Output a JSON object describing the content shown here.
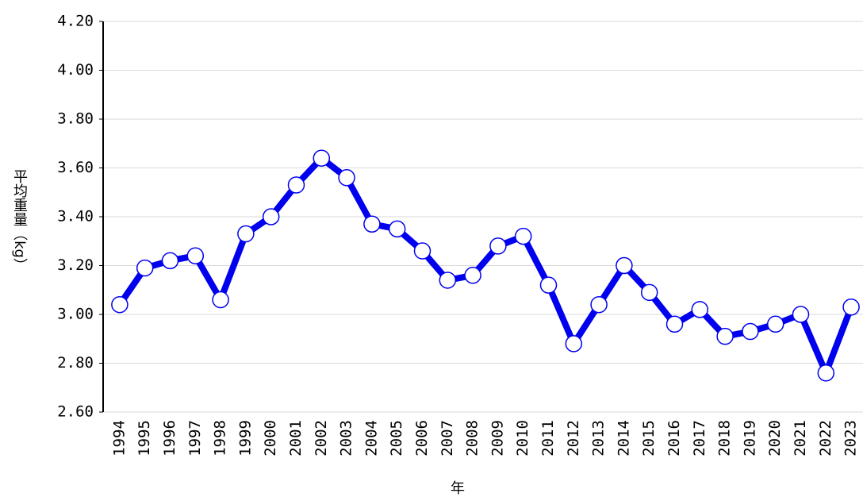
{
  "chart_data": {
    "type": "line",
    "y_label": "平均重量（kg）",
    "x_label": "年",
    "categories": [
      "1994",
      "1995",
      "1996",
      "1997",
      "1998",
      "1999",
      "2000",
      "2001",
      "2002",
      "2003",
      "2004",
      "2005",
      "2006",
      "2007",
      "2008",
      "2009",
      "2010",
      "2011",
      "2012",
      "2013",
      "2014",
      "2015",
      "2016",
      "2017",
      "2018",
      "2019",
      "2020",
      "2021",
      "2022",
      "2023"
    ],
    "series": [
      {
        "color": "#0000ee",
        "values": [
          3.04,
          3.19,
          3.22,
          3.24,
          3.06,
          3.33,
          3.4,
          3.53,
          3.64,
          3.56,
          3.37,
          3.35,
          3.26,
          3.14,
          3.16,
          3.28,
          3.32,
          3.12,
          2.88,
          3.04,
          3.2,
          3.09,
          2.96,
          3.02,
          2.91,
          2.93,
          2.96,
          3.0,
          2.76,
          3.03
        ]
      }
    ],
    "ylim": [
      2.6,
      4.2
    ],
    "yticks": [
      {
        "value": 2.6,
        "label": "2.60"
      },
      {
        "value": 2.8,
        "label": "2.80"
      },
      {
        "value": 3.0,
        "label": "3.00"
      },
      {
        "value": 3.2,
        "label": "3.20"
      },
      {
        "value": 3.4,
        "label": "3.40"
      },
      {
        "value": 3.6,
        "label": "3.60"
      },
      {
        "value": 3.8,
        "label": "3.80"
      },
      {
        "value": 4.0,
        "label": "4.00"
      },
      {
        "value": 4.2,
        "label": "4.20"
      }
    ],
    "grid": true
  }
}
